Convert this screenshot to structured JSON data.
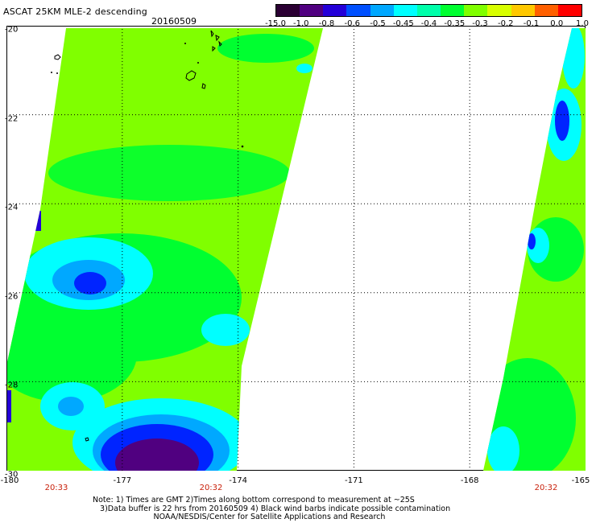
{
  "header": {
    "title": "ASCAT 25KM MLE-2 descending",
    "date": "20160509"
  },
  "colorbar": {
    "tick_labels": [
      "-15.0",
      "-1.0",
      "-0.8",
      "-0.6",
      "-0.5",
      "-0.45",
      "-0.4",
      "-0.35",
      "-0.3",
      "-0.2",
      "-0.1",
      "0.0",
      "1.0"
    ],
    "colors": [
      "#2b0033",
      "#500080",
      "#2400d8",
      "#0050ff",
      "#00a8ff",
      "#00ffff",
      "#00ffaa",
      "#00ff30",
      "#80ff00",
      "#d8ff00",
      "#ffc800",
      "#ff6000",
      "#ff0000"
    ]
  },
  "map": {
    "lat_labels": [
      "-20",
      "-22",
      "-24",
      "-26",
      "-28",
      "-30"
    ],
    "lon_labels": [
      "-180",
      "-177",
      "-174",
      "-171",
      "-168",
      "-165"
    ],
    "pass_times": [
      "20:33",
      "20:32",
      "20:32"
    ],
    "colors": {
      "background_swath": "#80ff00",
      "green": "#00ff30",
      "cyan": "#00ffff",
      "light_blue": "#00a8ff",
      "blue": "#0024ff",
      "deep_blue": "#2400d8",
      "purple": "#500080",
      "gridline": "#000000"
    }
  },
  "footer": {
    "note_line1": "Note: 1) Times are GMT 2)Times along bottom correspond to measurement at ~25S",
    "note_line2": "   3)Data buffer is 22 hrs from 20160509 4) Black wind barbs indicate possible contamination",
    "note_line3": "                         NOAA/NESDIS/Center for Satellite Applications and Research"
  }
}
